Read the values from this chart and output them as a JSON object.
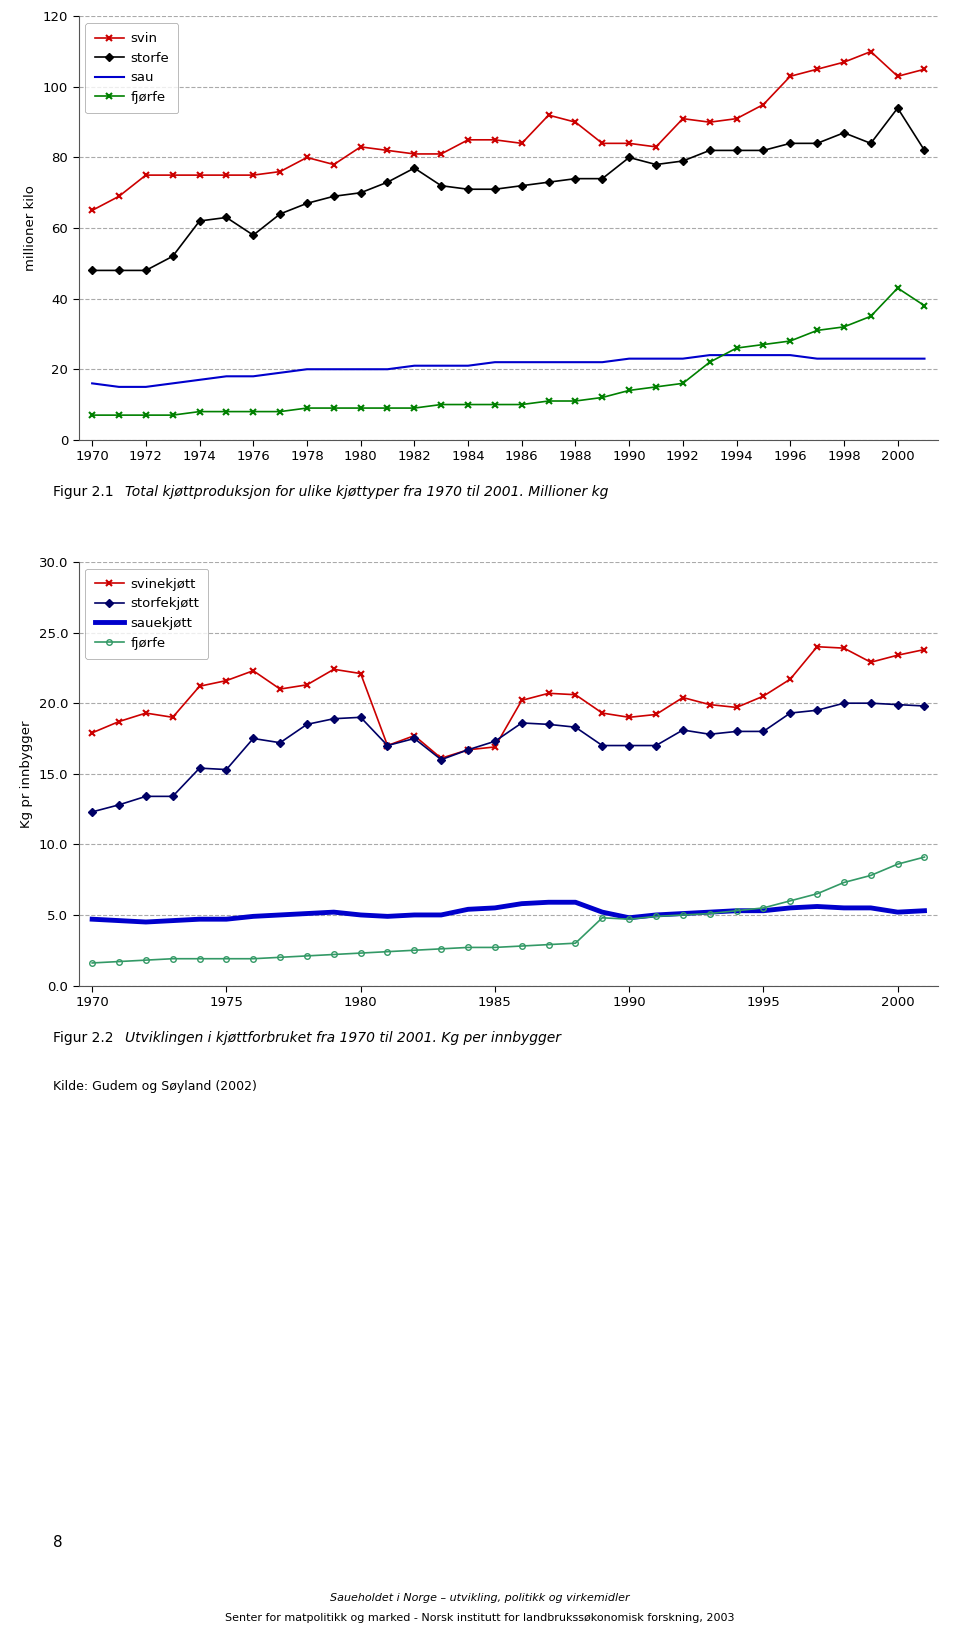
{
  "chart1": {
    "ylabel": "millioner kilo",
    "years": [
      1970,
      1971,
      1972,
      1973,
      1974,
      1975,
      1976,
      1977,
      1978,
      1979,
      1980,
      1981,
      1982,
      1983,
      1984,
      1985,
      1986,
      1987,
      1988,
      1989,
      1990,
      1991,
      1992,
      1993,
      1994,
      1995,
      1996,
      1997,
      1998,
      1999,
      2000,
      2001
    ],
    "svin": [
      65,
      69,
      75,
      75,
      75,
      75,
      75,
      76,
      80,
      78,
      83,
      82,
      81,
      81,
      85,
      85,
      84,
      92,
      90,
      84,
      84,
      83,
      91,
      90,
      91,
      95,
      103,
      105,
      107,
      110,
      103,
      105
    ],
    "storfe": [
      48,
      48,
      48,
      52,
      62,
      63,
      58,
      64,
      67,
      69,
      70,
      73,
      77,
      72,
      71,
      71,
      72,
      73,
      74,
      74,
      80,
      78,
      79,
      82,
      82,
      82,
      84,
      84,
      87,
      84,
      94,
      82
    ],
    "sau": [
      16,
      15,
      15,
      16,
      17,
      18,
      18,
      19,
      20,
      20,
      20,
      20,
      21,
      21,
      21,
      22,
      22,
      22,
      22,
      22,
      23,
      23,
      23,
      24,
      24,
      24,
      24,
      23,
      23,
      23,
      23,
      23
    ],
    "fjorfe": [
      7,
      7,
      7,
      7,
      8,
      8,
      8,
      8,
      9,
      9,
      9,
      9,
      9,
      10,
      10,
      10,
      10,
      11,
      11,
      12,
      14,
      15,
      16,
      22,
      26,
      27,
      28,
      31,
      32,
      35,
      43,
      38
    ],
    "svin_color": "#cc0000",
    "storfe_color": "#000000",
    "sau_color": "#0000cc",
    "fjorfe_color": "#008000",
    "ylim": [
      0,
      120
    ],
    "yticks": [
      0,
      20,
      40,
      60,
      80,
      100,
      120
    ],
    "xticks": [
      1970,
      1972,
      1974,
      1976,
      1978,
      1980,
      1982,
      1984,
      1986,
      1988,
      1990,
      1992,
      1994,
      1996,
      1998,
      2000
    ],
    "legend_labels": [
      "svin",
      "storfe",
      "sau",
      "fjørfe"
    ]
  },
  "chart2": {
    "ylabel": "Kg pr innbygger",
    "years": [
      1970,
      1971,
      1972,
      1973,
      1974,
      1975,
      1976,
      1977,
      1978,
      1979,
      1980,
      1981,
      1982,
      1983,
      1984,
      1985,
      1986,
      1987,
      1988,
      1989,
      1990,
      1991,
      1992,
      1993,
      1994,
      1995,
      1996,
      1997,
      1998,
      1999,
      2000,
      2001
    ],
    "svin": [
      17.9,
      18.7,
      19.3,
      19.0,
      21.2,
      21.6,
      22.3,
      21.0,
      21.3,
      22.4,
      22.1,
      17.0,
      17.7,
      16.1,
      16.7,
      16.9,
      20.2,
      20.7,
      20.6,
      19.3,
      19.0,
      19.2,
      20.4,
      19.9,
      19.7,
      20.5,
      21.7,
      24.0,
      23.9,
      22.9,
      23.4,
      23.8
    ],
    "storfe": [
      12.3,
      12.8,
      13.4,
      13.4,
      15.4,
      15.3,
      17.5,
      17.2,
      18.5,
      18.9,
      19.0,
      17.0,
      17.5,
      16.0,
      16.7,
      17.3,
      18.6,
      18.5,
      18.3,
      17.0,
      17.0,
      17.0,
      18.1,
      17.8,
      18.0,
      18.0,
      19.3,
      19.5,
      20.0,
      20.0,
      19.9,
      19.8
    ],
    "sau": [
      4.7,
      4.6,
      4.5,
      4.6,
      4.7,
      4.7,
      4.9,
      5.0,
      5.1,
      5.2,
      5.0,
      4.9,
      5.0,
      5.0,
      5.4,
      5.5,
      5.8,
      5.9,
      5.9,
      5.2,
      4.8,
      5.0,
      5.1,
      5.2,
      5.3,
      5.3,
      5.5,
      5.6,
      5.5,
      5.5,
      5.2,
      5.3
    ],
    "fjorfe": [
      1.6,
      1.7,
      1.8,
      1.9,
      1.9,
      1.9,
      1.9,
      2.0,
      2.1,
      2.2,
      2.3,
      2.4,
      2.5,
      2.6,
      2.7,
      2.7,
      2.8,
      2.9,
      3.0,
      4.8,
      4.7,
      4.9,
      5.0,
      5.1,
      5.3,
      5.5,
      6.0,
      6.5,
      7.3,
      7.8,
      8.6,
      9.1
    ],
    "svin_color": "#cc0000",
    "storfe_color": "#000066",
    "sau_color": "#0000cc",
    "fjorfe_color": "#339966",
    "ylim": [
      0,
      30
    ],
    "yticks": [
      0.0,
      5.0,
      10.0,
      15.0,
      20.0,
      25.0,
      30.0
    ],
    "xticks": [
      1970,
      1975,
      1980,
      1985,
      1990,
      1995,
      2000
    ],
    "legend_labels": [
      "svinekjøtt",
      "storfekjøtt",
      "sauekjøtt",
      "fjørfe"
    ]
  },
  "fig21_caption_bold": "Figur 2.1",
  "fig21_caption_italic": "     Total kjøttproduksjon for ulike kjøttyper fra 1970 til 2001. Millioner kg",
  "fig22_caption_bold": "Figur 2.2",
  "fig22_caption_italic": "     Utviklingen i kjøttforbruket fra 1970 til 2001. Kg per innbygger",
  "kilde": "Kilde: Gudem og Søyland (2002)",
  "page_number": "8",
  "footer_line1": "Saueholdet i Norge – utvikling, politikk og virkemidler",
  "footer_line2": "Senter for matpolitikk og marked - Norsk institutt for landbrukssøkonomisk forskning, 2003"
}
